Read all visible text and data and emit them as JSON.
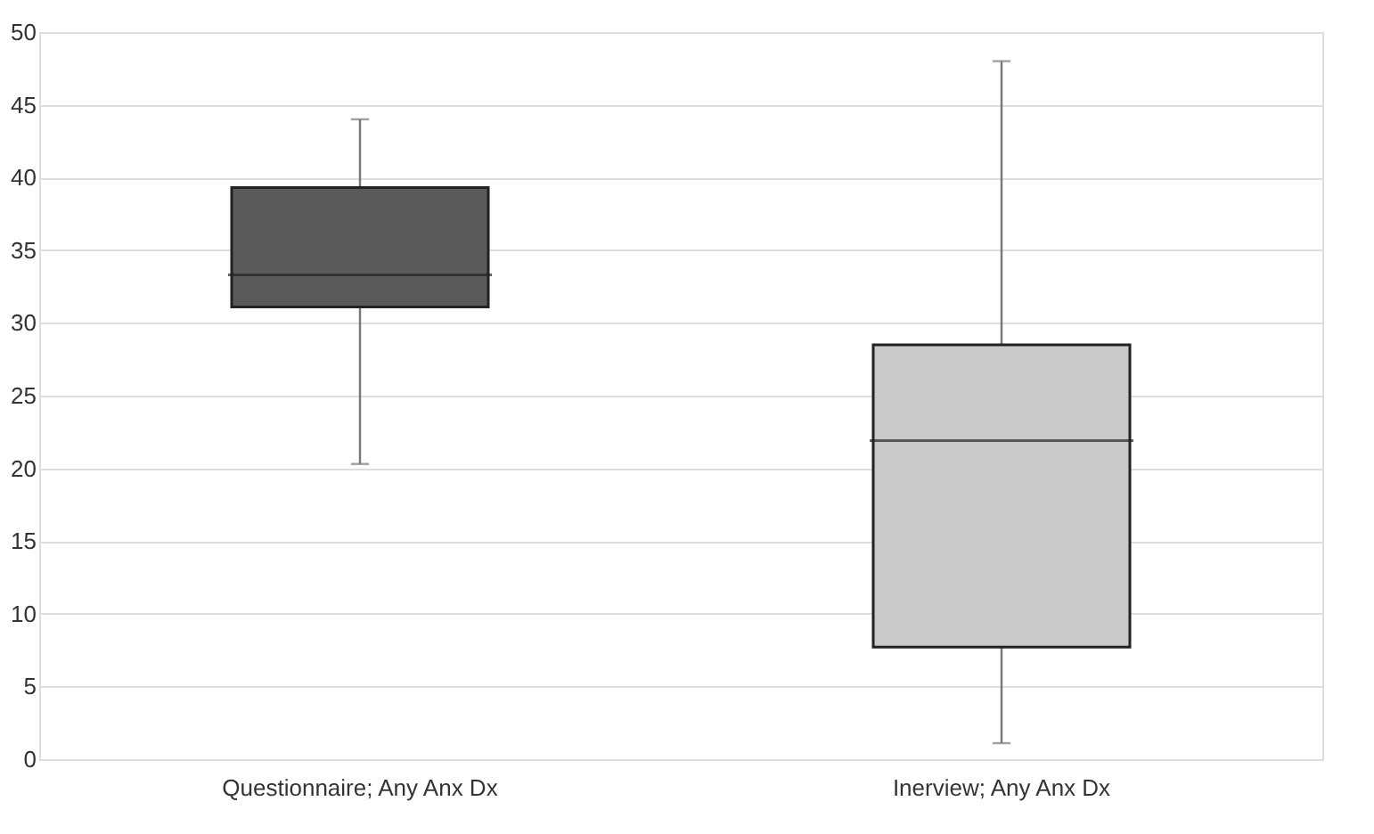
{
  "chart_data": {
    "type": "box",
    "categories": [
      "Questionnaire; Any Anx Dx",
      "Inerview; Any Anx Dx"
    ],
    "boxes": [
      {
        "low": 20.3,
        "q1": 31.1,
        "median": 33.3,
        "q3": 39.3,
        "high": 44
      },
      {
        "low": 1.1,
        "q1": 7.7,
        "median": 21.9,
        "q3": 28.5,
        "high": 48
      }
    ],
    "colors": [
      "#5a5a5a",
      "#c8c9cb"
    ],
    "ylim": [
      0,
      50
    ],
    "yticks": [
      0,
      5,
      10,
      15,
      20,
      25,
      30,
      35,
      40,
      45,
      50
    ],
    "grid": "y"
  }
}
